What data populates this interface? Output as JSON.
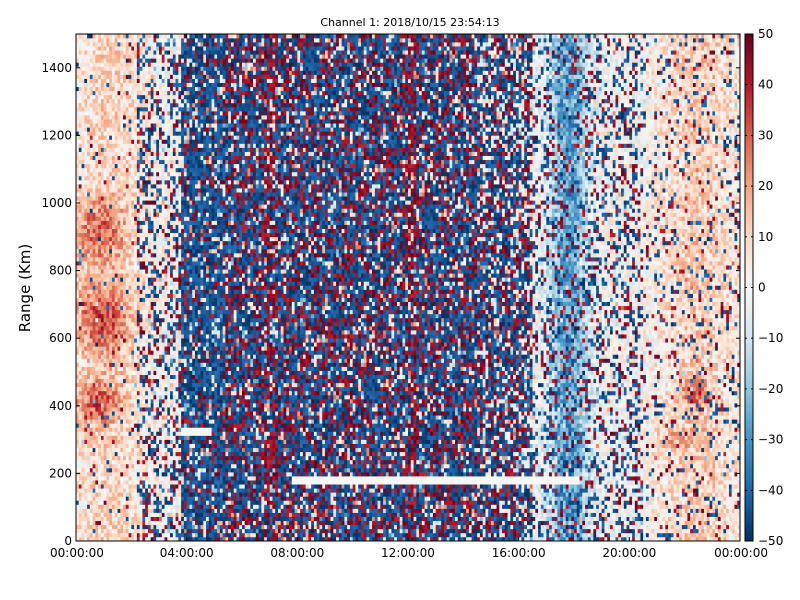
{
  "chart_data": {
    "type": "heatmap",
    "title": "Channel 1: 2018/10/15 23:54:13",
    "xlabel": "",
    "ylabel": "Range (Km)",
    "x_ticks": [
      "00:00:00",
      "04:00:00",
      "08:00:00",
      "12:00:00",
      "16:00:00",
      "20:00:00",
      "00:00:00"
    ],
    "x_range_hours": [
      0,
      24
    ],
    "y_ticks": [
      0,
      200,
      400,
      600,
      800,
      1000,
      1200,
      1400
    ],
    "ylim": [
      0,
      1500
    ],
    "colorbar": {
      "ticks": [
        -50,
        -40,
        -30,
        -20,
        -10,
        0,
        10,
        20,
        30,
        40,
        50
      ],
      "range": [
        -50,
        50
      ],
      "colormap": "RdBu_r",
      "colors": [
        "#053061",
        "#2166ac",
        "#4393c3",
        "#92c5de",
        "#d1e5f0",
        "#f7f7f7",
        "#fddbc7",
        "#f4a582",
        "#d6604d",
        "#b2182b",
        "#67001f"
      ]
    },
    "grid": false,
    "legend": "none"
  }
}
